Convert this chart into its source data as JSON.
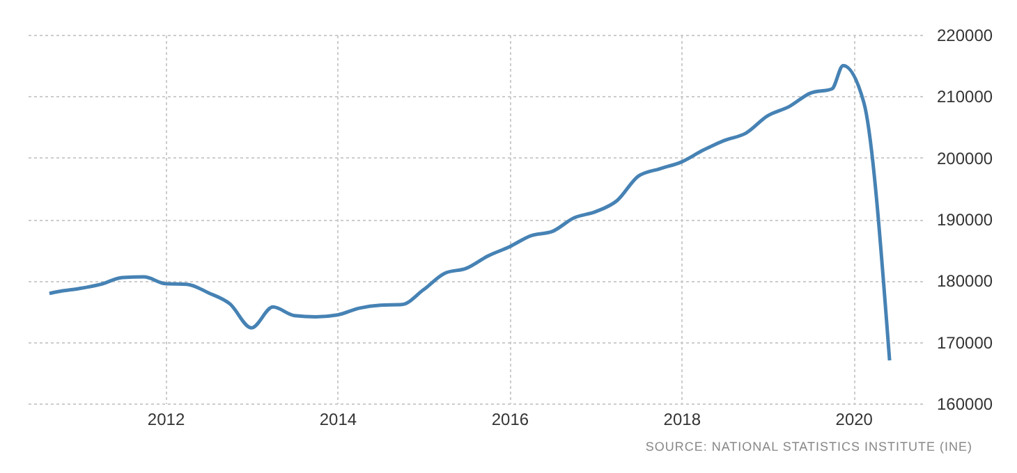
{
  "chart_data": {
    "type": "line",
    "x": [
      2010.65,
      2010.75,
      2011.0,
      2011.25,
      2011.5,
      2011.75,
      2012.0,
      2012.25,
      2012.5,
      2012.75,
      2013.0,
      2013.25,
      2013.5,
      2013.75,
      2014.0,
      2014.25,
      2014.5,
      2014.75,
      2015.0,
      2015.25,
      2015.5,
      2015.75,
      2016.0,
      2016.25,
      2016.5,
      2016.75,
      2017.0,
      2017.25,
      2017.5,
      2017.75,
      2018.0,
      2018.25,
      2018.5,
      2018.75,
      2019.0,
      2019.25,
      2019.5,
      2019.75,
      2019.88,
      2020.12,
      2020.42
    ],
    "series": [
      {
        "color": "#4682b4",
        "values": [
          177900,
          178200,
          178700,
          179400,
          180500,
          180600,
          179500,
          179400,
          178000,
          176200,
          172300,
          175700,
          174300,
          174100,
          174400,
          175500,
          176000,
          176100,
          178500,
          181200,
          182000,
          184000,
          185500,
          187300,
          188000,
          190200,
          191200,
          193000,
          197000,
          198200,
          199300,
          201200,
          202800,
          204000,
          206800,
          208300,
          210500,
          211200,
          215000,
          209000,
          167000
        ]
      }
    ],
    "xlim": [
      2010.4,
      2020.8
    ],
    "xticks": [
      2012,
      2014,
      2016,
      2018,
      2020
    ],
    "ylim": [
      160000,
      220000
    ],
    "yticks": [
      160000,
      170000,
      180000,
      190000,
      200000,
      210000,
      220000
    ],
    "grid": true,
    "marker": "none",
    "line_style": "solid",
    "annotations": [
      "SOURCE: NATIONAL STATISTICS INSTITUTE (INE)"
    ]
  }
}
